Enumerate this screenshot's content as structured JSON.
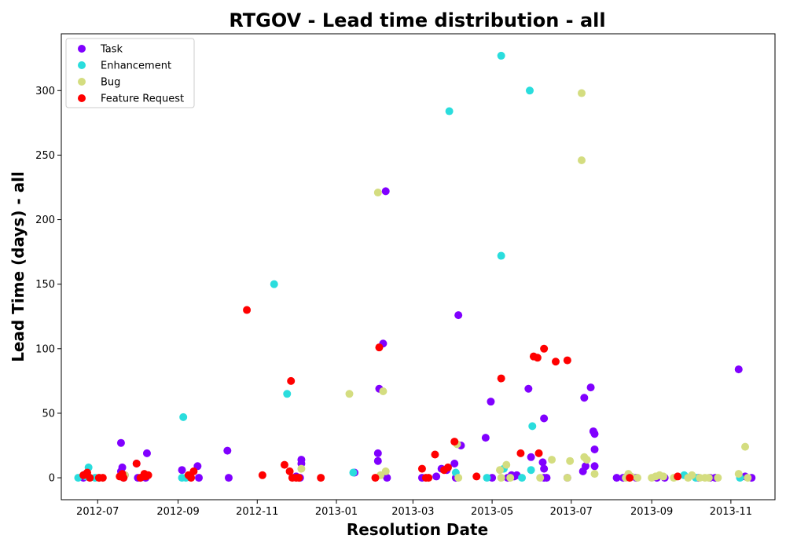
{
  "chart_data": {
    "type": "scatter",
    "title": "RTGOV - Lead time distribution - all",
    "xlabel": "Resolution Date",
    "ylabel": "Lead Time (days) - all",
    "x_is_date": true,
    "xlim": [
      "2012-06-03",
      "2013-12-05"
    ],
    "ylim": [
      -17,
      344
    ],
    "x_ticks": [
      "2012-07-01",
      "2012-09-01",
      "2012-11-01",
      "2013-01-01",
      "2013-03-01",
      "2013-05-01",
      "2013-07-01",
      "2013-09-01",
      "2013-11-01"
    ],
    "x_tick_labels": [
      "2012-07",
      "2012-09",
      "2012-11",
      "2013-01",
      "2013-03",
      "2013-05",
      "2013-07",
      "2013-09",
      "2013-11"
    ],
    "y_ticks": [
      0,
      50,
      100,
      150,
      200,
      250,
      300
    ],
    "grid": false,
    "legend_position": "top-left",
    "series": [
      {
        "name": "Task",
        "color": "#8000ff",
        "points": [
          [
            "2012-06-20",
            0
          ],
          [
            "2012-06-22",
            3
          ],
          [
            "2012-07-19",
            27
          ],
          [
            "2012-07-19",
            5
          ],
          [
            "2012-07-20",
            8
          ],
          [
            "2012-07-21",
            0
          ],
          [
            "2012-07-22",
            2
          ],
          [
            "2012-07-31",
            11
          ],
          [
            "2012-08-01",
            0
          ],
          [
            "2012-08-03",
            0
          ],
          [
            "2012-08-07",
            0
          ],
          [
            "2012-08-08",
            19
          ],
          [
            "2012-09-04",
            6
          ],
          [
            "2012-09-10",
            1
          ],
          [
            "2012-09-16",
            9
          ],
          [
            "2012-09-17",
            0
          ],
          [
            "2012-10-09",
            21
          ],
          [
            "2012-10-10",
            0
          ],
          [
            "2012-12-01",
            1
          ],
          [
            "2012-12-04",
            0
          ],
          [
            "2012-12-05",
            14
          ],
          [
            "2012-12-05",
            11
          ],
          [
            "2013-01-15",
            4
          ],
          [
            "2013-02-02",
            19
          ],
          [
            "2013-02-02",
            13
          ],
          [
            "2013-02-03",
            69
          ],
          [
            "2013-02-06",
            104
          ],
          [
            "2013-02-08",
            222
          ],
          [
            "2013-02-09",
            0
          ],
          [
            "2013-03-08",
            0
          ],
          [
            "2013-03-19",
            1
          ],
          [
            "2013-03-23",
            7
          ],
          [
            "2013-03-27",
            6
          ],
          [
            "2013-04-02",
            11
          ],
          [
            "2013-04-03",
            0
          ],
          [
            "2013-04-05",
            126
          ],
          [
            "2013-04-07",
            25
          ],
          [
            "2013-04-26",
            31
          ],
          [
            "2013-04-30",
            59
          ],
          [
            "2013-05-01",
            0
          ],
          [
            "2013-05-13",
            0
          ],
          [
            "2013-05-16",
            2
          ],
          [
            "2013-05-18",
            1
          ],
          [
            "2013-05-20",
            2
          ],
          [
            "2013-05-29",
            69
          ],
          [
            "2013-05-31",
            16
          ],
          [
            "2013-06-09",
            12
          ],
          [
            "2013-06-10",
            7
          ],
          [
            "2013-06-10",
            0
          ],
          [
            "2013-06-10",
            46
          ],
          [
            "2013-06-12",
            0
          ],
          [
            "2013-06-28",
            0
          ],
          [
            "2013-07-10",
            5
          ],
          [
            "2013-07-11",
            62
          ],
          [
            "2013-07-12",
            9
          ],
          [
            "2013-07-16",
            70
          ],
          [
            "2013-07-18",
            36
          ],
          [
            "2013-07-19",
            34
          ],
          [
            "2013-07-19",
            22
          ],
          [
            "2013-07-19",
            9
          ],
          [
            "2013-08-05",
            0
          ],
          [
            "2013-08-10",
            0
          ],
          [
            "2013-08-13",
            1
          ],
          [
            "2013-08-20",
            0
          ],
          [
            "2013-09-05",
            0
          ],
          [
            "2013-09-11",
            0
          ],
          [
            "2013-10-07",
            0
          ],
          [
            "2013-10-16",
            0
          ],
          [
            "2013-10-20",
            0
          ],
          [
            "2013-11-07",
            84
          ],
          [
            "2013-11-12",
            1
          ],
          [
            "2013-11-17",
            0
          ]
        ]
      },
      {
        "name": "Enhancement",
        "color": "#2adddd",
        "points": [
          [
            "2012-06-16",
            0
          ],
          [
            "2012-06-22",
            1
          ],
          [
            "2012-06-24",
            8
          ],
          [
            "2012-06-29",
            0
          ],
          [
            "2012-09-04",
            0
          ],
          [
            "2012-09-05",
            47
          ],
          [
            "2012-09-07",
            0
          ],
          [
            "2012-11-14",
            150
          ],
          [
            "2012-11-24",
            65
          ],
          [
            "2013-01-14",
            4
          ],
          [
            "2013-03-29",
            284
          ],
          [
            "2013-04-03",
            4
          ],
          [
            "2013-04-27",
            0
          ],
          [
            "2013-05-08",
            327
          ],
          [
            "2013-05-08",
            172
          ],
          [
            "2013-05-10",
            7
          ],
          [
            "2013-05-24",
            0
          ],
          [
            "2013-05-30",
            300
          ],
          [
            "2013-05-31",
            6
          ],
          [
            "2013-06-01",
            40
          ],
          [
            "2013-09-26",
            2
          ],
          [
            "2013-10-05",
            0
          ],
          [
            "2013-11-08",
            0
          ]
        ]
      },
      {
        "name": "Bug",
        "color": "#d4dd80",
        "points": [
          [
            "2012-07-22",
            2
          ],
          [
            "2012-12-05",
            7
          ],
          [
            "2013-01-11",
            65
          ],
          [
            "2013-02-02",
            221
          ],
          [
            "2013-02-04",
            2
          ],
          [
            "2013-02-06",
            67
          ],
          [
            "2013-02-08",
            5
          ],
          [
            "2013-04-04",
            26
          ],
          [
            "2013-04-05",
            0
          ],
          [
            "2013-05-07",
            6
          ],
          [
            "2013-05-08",
            0
          ],
          [
            "2013-05-12",
            10
          ],
          [
            "2013-05-15",
            0
          ],
          [
            "2013-06-07",
            0
          ],
          [
            "2013-06-16",
            14
          ],
          [
            "2013-06-28",
            0
          ],
          [
            "2013-06-30",
            13
          ],
          [
            "2013-07-09",
            298
          ],
          [
            "2013-07-09",
            246
          ],
          [
            "2013-07-11",
            16
          ],
          [
            "2013-07-13",
            14
          ],
          [
            "2013-07-19",
            3
          ],
          [
            "2013-08-12",
            0
          ],
          [
            "2013-08-14",
            3
          ],
          [
            "2013-08-16",
            1
          ],
          [
            "2013-08-21",
            0
          ],
          [
            "2013-09-01",
            0
          ],
          [
            "2013-09-04",
            1
          ],
          [
            "2013-09-07",
            2
          ],
          [
            "2013-09-10",
            1
          ],
          [
            "2013-09-18",
            0
          ],
          [
            "2013-09-29",
            0
          ],
          [
            "2013-10-02",
            2
          ],
          [
            "2013-10-08",
            0
          ],
          [
            "2013-10-12",
            0
          ],
          [
            "2013-10-15",
            0
          ],
          [
            "2013-10-22",
            0
          ],
          [
            "2013-11-07",
            3
          ],
          [
            "2013-11-12",
            24
          ],
          [
            "2013-11-14",
            0
          ]
        ]
      },
      {
        "name": "Feature Request",
        "color": "#ff0000",
        "points": [
          [
            "2012-06-20",
            2
          ],
          [
            "2012-06-23",
            4
          ],
          [
            "2012-06-25",
            0
          ],
          [
            "2012-07-02",
            0
          ],
          [
            "2012-07-05",
            0
          ],
          [
            "2012-07-18",
            1
          ],
          [
            "2012-07-20",
            3
          ],
          [
            "2012-07-21",
            0
          ],
          [
            "2012-07-31",
            11
          ],
          [
            "2012-08-03",
            0
          ],
          [
            "2012-08-06",
            3
          ],
          [
            "2012-08-07",
            1
          ],
          [
            "2012-08-09",
            2
          ],
          [
            "2012-09-09",
            2
          ],
          [
            "2012-09-11",
            0
          ],
          [
            "2012-09-13",
            5
          ],
          [
            "2012-10-24",
            130
          ],
          [
            "2012-11-05",
            2
          ],
          [
            "2012-11-22",
            10
          ],
          [
            "2012-11-26",
            5
          ],
          [
            "2012-11-27",
            75
          ],
          [
            "2012-11-28",
            0
          ],
          [
            "2012-12-01",
            0
          ],
          [
            "2012-12-03",
            0
          ],
          [
            "2012-12-20",
            0
          ],
          [
            "2013-01-31",
            0
          ],
          [
            "2013-02-03",
            101
          ],
          [
            "2013-03-08",
            7
          ],
          [
            "2013-03-11",
            0
          ],
          [
            "2013-03-13",
            0
          ],
          [
            "2013-03-18",
            18
          ],
          [
            "2013-03-25",
            6
          ],
          [
            "2013-03-28",
            8
          ],
          [
            "2013-04-02",
            28
          ],
          [
            "2013-04-19",
            1
          ],
          [
            "2013-05-08",
            77
          ],
          [
            "2013-05-23",
            19
          ],
          [
            "2013-06-02",
            94
          ],
          [
            "2013-06-05",
            93
          ],
          [
            "2013-06-06",
            19
          ],
          [
            "2013-06-10",
            100
          ],
          [
            "2013-06-19",
            90
          ],
          [
            "2013-06-28",
            91
          ],
          [
            "2013-08-15",
            0
          ],
          [
            "2013-09-21",
            1
          ]
        ]
      }
    ]
  }
}
